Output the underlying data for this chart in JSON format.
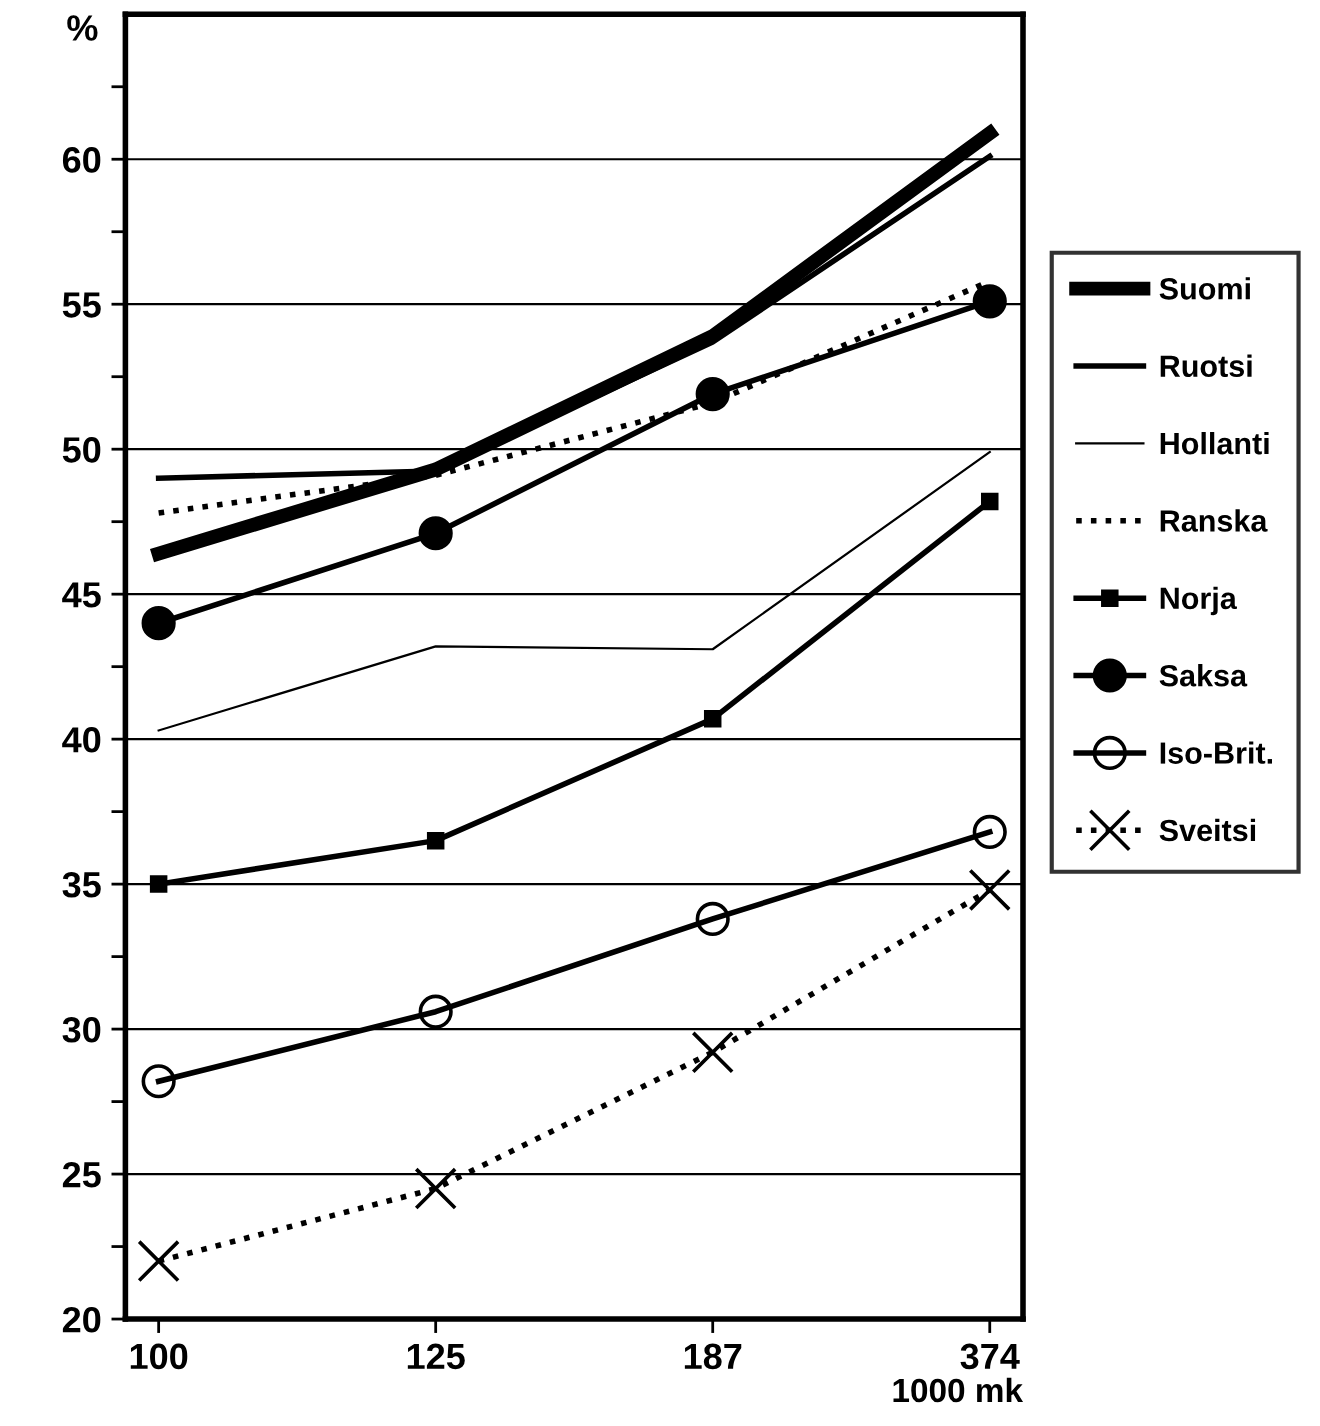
{
  "chart_data": {
    "type": "line",
    "ylabel": "%",
    "xlabel": "1000 mk",
    "categories": [
      "100",
      "125",
      "187",
      "374"
    ],
    "ylim": [
      20,
      65
    ],
    "yticks": [
      20,
      {
        "value": 22.5,
        "label": null
      },
      25,
      {
        "value": 27.5,
        "label": null
      },
      30,
      {
        "value": 32.5,
        "label": null
      },
      35,
      {
        "value": 37.5,
        "label": null
      },
      40,
      {
        "value": 42.5,
        "label": null
      },
      45,
      {
        "value": 47.5,
        "label": null
      },
      50,
      {
        "value": 52.5,
        "label": null
      },
      55,
      {
        "value": 57.5,
        "label": null
      },
      60,
      {
        "value": 62.5,
        "label": null
      }
    ],
    "grid": "y",
    "legend": "right",
    "series": [
      {
        "name": "Suomi",
        "color": "#000000",
        "values": [
          46.4,
          49.3,
          53.9,
          60.9
        ],
        "line_style": "solid",
        "marker": "none"
      },
      {
        "name": "Ruotsi",
        "color": "#000000",
        "values": [
          49.0,
          49.25,
          53.7,
          60.1
        ],
        "line_style": "solid",
        "marker": "none"
      },
      {
        "name": "Hollanti",
        "color": "#000000",
        "values": [
          40.3,
          43.2,
          43.1,
          49.9
        ],
        "line_style": "solid",
        "marker": "none"
      },
      {
        "name": "Ranska",
        "color": "#000000",
        "values": [
          47.8,
          49.1,
          51.6,
          55.8
        ],
        "line_style": "dotted",
        "marker": "none"
      },
      {
        "name": "Norja",
        "color": "#000000",
        "values": [
          35.0,
          36.5,
          40.7,
          48.2
        ],
        "line_style": "solid",
        "marker": "square"
      },
      {
        "name": "Saksa",
        "color": "#000000",
        "values": [
          44.0,
          47.1,
          51.9,
          55.1
        ],
        "line_style": "solid",
        "marker": "circle"
      },
      {
        "name": "Iso-Brit.",
        "color": "#000000",
        "values": [
          28.2,
          30.6,
          33.8,
          36.8
        ],
        "line_style": "solid",
        "marker": "circle"
      },
      {
        "name": "Sveitsi",
        "color": "#000000",
        "values": [
          22.0,
          24.5,
          29.2,
          34.8
        ],
        "line_style": "dotted",
        "marker": "cross"
      }
    ]
  }
}
